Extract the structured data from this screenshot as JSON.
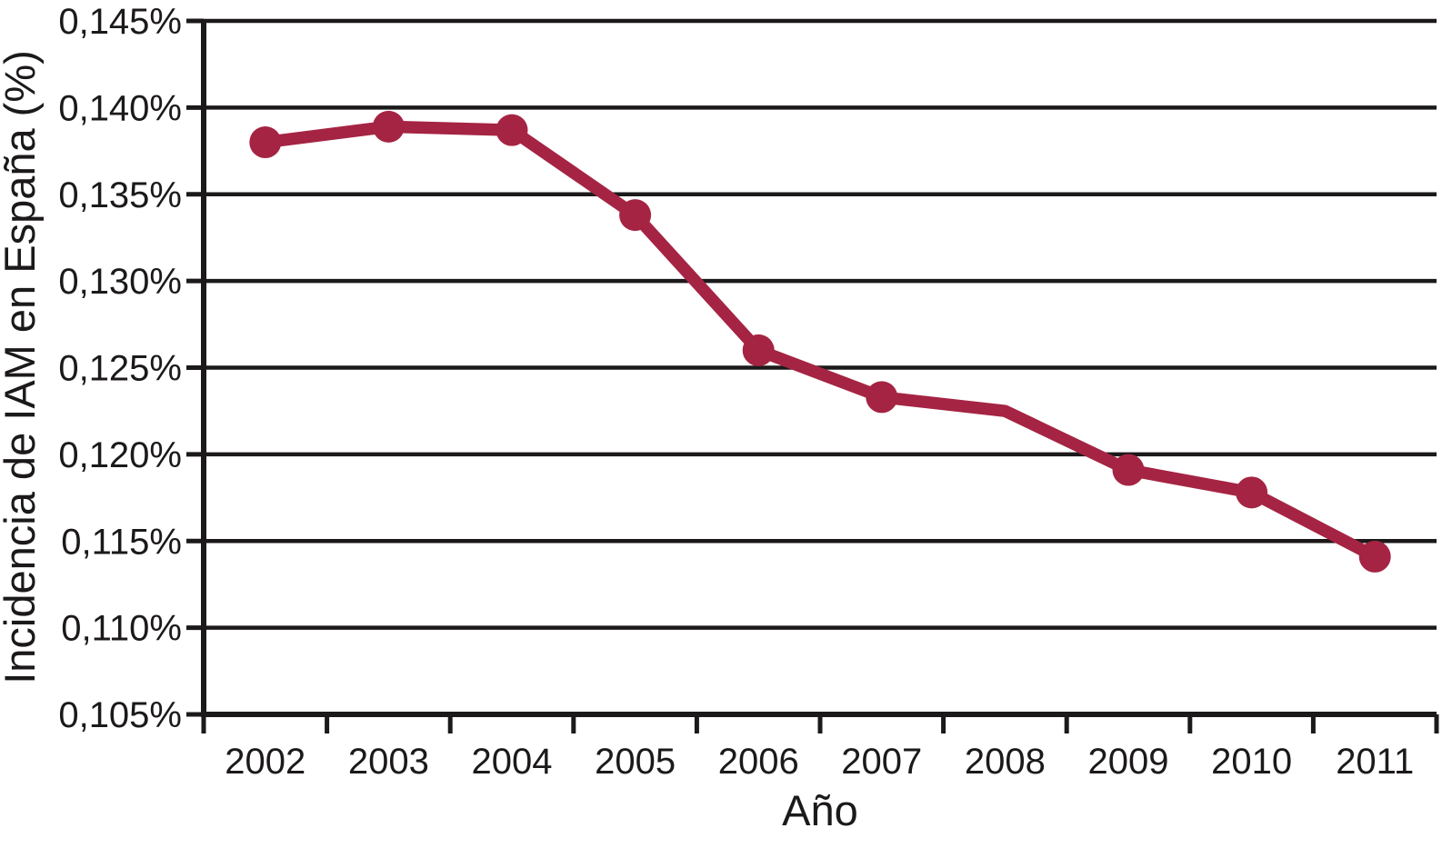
{
  "chart_data": {
    "type": "line",
    "title": "",
    "xlabel": "Año",
    "ylabel": "Incidencia de IAM en España (%)",
    "categories": [
      "2002",
      "2003",
      "2004",
      "2005",
      "2006",
      "2007",
      "2008",
      "2009",
      "2010",
      "2011"
    ],
    "series": [
      {
        "name": "Incidencia de IAM",
        "color": "#a52443",
        "values": [
          0.138,
          0.1389,
          0.1387,
          0.1338,
          0.126,
          0.1233,
          0.1225,
          0.1191,
          0.1178,
          0.1141
        ],
        "markers": [
          true,
          true,
          true,
          true,
          true,
          true,
          false,
          true,
          true,
          true
        ]
      }
    ],
    "ylim": [
      0.105,
      0.145
    ],
    "yticks": [
      0.145,
      0.14,
      0.135,
      0.13,
      0.125,
      0.12,
      0.115,
      0.11,
      0.105
    ],
    "ytick_labels": [
      "0,145%",
      "0,140%",
      "0,135%",
      "0,130%",
      "0,125%",
      "0,120%",
      "0,115%",
      "0,110%",
      "0,105%"
    ],
    "grid": "horizontal-solid",
    "legend": false,
    "axis_color": "#1c191a"
  }
}
